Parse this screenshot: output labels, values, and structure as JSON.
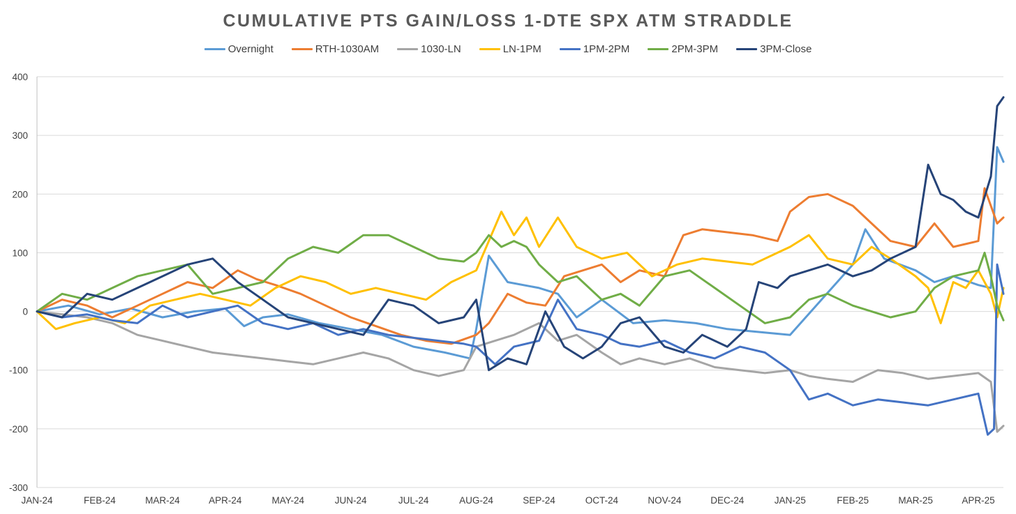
{
  "chart_data": {
    "type": "line",
    "title": "CUMULATIVE PTS GAIN/LOSS 1-DTE SPX ATM STRADDLE",
    "xlabel": "",
    "ylabel": "",
    "ylim": [
      -300,
      400
    ],
    "yticks": [
      400,
      300,
      200,
      100,
      0,
      -100,
      -200,
      -300
    ],
    "grid": true,
    "legend_position": "top",
    "categories": [
      "JAN-24",
      "FEB-24",
      "MAR-24",
      "APR-24",
      "MAY-24",
      "JUN-24",
      "JUL-24",
      "AUG-24",
      "SEP-24",
      "OCT-24",
      "NOV-24",
      "DEC-24",
      "JAN-25",
      "FEB-25",
      "MAR-25",
      "APR-25"
    ],
    "x_end": 15.4,
    "series": [
      {
        "name": "Overnight",
        "color": "#5B9BD5",
        "x": [
          0,
          0.5,
          1,
          1.5,
          2,
          2.5,
          3,
          3.3,
          3.6,
          4,
          4.5,
          5,
          5.5,
          6,
          6.5,
          6.9,
          7,
          7.2,
          7.5,
          8,
          8.3,
          8.6,
          9,
          9.5,
          10,
          10.5,
          11,
          11.5,
          12,
          12.5,
          13,
          13.2,
          13.5,
          14,
          14.3,
          14.6,
          15,
          15.2,
          15.3,
          15.4
        ],
        "values": [
          0,
          10,
          -5,
          5,
          -10,
          0,
          5,
          -25,
          -10,
          -5,
          -20,
          -30,
          -40,
          -60,
          -70,
          -80,
          -30,
          95,
          50,
          40,
          30,
          -10,
          20,
          -20,
          -15,
          -20,
          -30,
          -35,
          -40,
          20,
          80,
          140,
          90,
          70,
          50,
          60,
          45,
          40,
          280,
          255
        ]
      },
      {
        "name": "RTH-1030AM",
        "color": "#ED7D31",
        "x": [
          0,
          0.4,
          0.8,
          1.2,
          1.6,
          2,
          2.4,
          2.8,
          3.2,
          3.5,
          3.8,
          4.2,
          4.6,
          5,
          5.4,
          5.8,
          6.2,
          6.6,
          7,
          7.2,
          7.5,
          7.8,
          8.1,
          8.4,
          8.7,
          9,
          9.3,
          9.6,
          10,
          10.3,
          10.6,
          11,
          11.4,
          11.8,
          12,
          12.3,
          12.6,
          13,
          13.3,
          13.6,
          14,
          14.3,
          14.6,
          15,
          15.1,
          15.2,
          15.3,
          15.4
        ],
        "values": [
          0,
          20,
          10,
          -10,
          10,
          30,
          50,
          40,
          70,
          55,
          45,
          30,
          10,
          -10,
          -25,
          -40,
          -50,
          -55,
          -40,
          -20,
          30,
          15,
          10,
          60,
          70,
          80,
          50,
          70,
          60,
          130,
          140,
          135,
          130,
          120,
          170,
          195,
          200,
          180,
          150,
          120,
          110,
          150,
          110,
          120,
          210,
          180,
          150,
          160
        ]
      },
      {
        "name": "1030-LN",
        "color": "#A5A5A5",
        "x": [
          0,
          0.4,
          0.8,
          1.2,
          1.6,
          2,
          2.4,
          2.8,
          3.2,
          3.6,
          4,
          4.4,
          4.8,
          5.2,
          5.6,
          6,
          6.4,
          6.8,
          7,
          7.3,
          7.6,
          8,
          8.3,
          8.6,
          9,
          9.3,
          9.6,
          10,
          10.4,
          10.8,
          11.2,
          11.6,
          12,
          12.3,
          12.6,
          13,
          13.4,
          13.8,
          14.2,
          14.6,
          15,
          15.2,
          15.3,
          15.4
        ],
        "values": [
          0,
          -5,
          -10,
          -20,
          -40,
          -50,
          -60,
          -70,
          -75,
          -80,
          -85,
          -90,
          -80,
          -70,
          -80,
          -100,
          -110,
          -100,
          -60,
          -50,
          -40,
          -20,
          -50,
          -40,
          -70,
          -90,
          -80,
          -90,
          -80,
          -95,
          -100,
          -105,
          -100,
          -110,
          -115,
          -120,
          -100,
          -105,
          -115,
          -110,
          -105,
          -120,
          -205,
          -195
        ]
      },
      {
        "name": "LN-1PM",
        "color": "#FFC000",
        "x": [
          0,
          0.3,
          0.6,
          1,
          1.4,
          1.8,
          2.2,
          2.6,
          3,
          3.4,
          3.8,
          4.2,
          4.6,
          5,
          5.4,
          5.8,
          6.2,
          6.6,
          7,
          7.2,
          7.4,
          7.6,
          7.8,
          8,
          8.3,
          8.6,
          9,
          9.4,
          9.8,
          10.2,
          10.6,
          11,
          11.4,
          11.8,
          12,
          12.3,
          12.6,
          13,
          13.3,
          13.6,
          14,
          14.2,
          14.4,
          14.6,
          14.8,
          15,
          15.2,
          15.3,
          15.4
        ],
        "values": [
          0,
          -30,
          -20,
          -10,
          -20,
          10,
          20,
          30,
          20,
          10,
          40,
          60,
          50,
          30,
          40,
          30,
          20,
          50,
          70,
          120,
          170,
          130,
          160,
          110,
          160,
          110,
          90,
          100,
          60,
          80,
          90,
          85,
          80,
          100,
          110,
          130,
          90,
          80,
          110,
          90,
          60,
          40,
          -20,
          50,
          40,
          70,
          30,
          -10,
          40
        ]
      },
      {
        "name": "1PM-2PM",
        "color": "#4472C4",
        "x": [
          0,
          0.4,
          0.8,
          1.2,
          1.6,
          2,
          2.4,
          2.8,
          3.2,
          3.6,
          4,
          4.4,
          4.8,
          5.2,
          5.6,
          6,
          6.4,
          6.8,
          7,
          7.3,
          7.6,
          8,
          8.3,
          8.6,
          9,
          9.3,
          9.6,
          10,
          10.4,
          10.8,
          11.2,
          11.6,
          12,
          12.3,
          12.6,
          13,
          13.4,
          13.8,
          14.2,
          14.6,
          15,
          15.15,
          15.25,
          15.3,
          15.4
        ],
        "values": [
          0,
          -10,
          -5,
          -15,
          -20,
          10,
          -10,
          0,
          10,
          -20,
          -30,
          -20,
          -40,
          -30,
          -40,
          -45,
          -50,
          -55,
          -60,
          -90,
          -60,
          -50,
          20,
          -30,
          -40,
          -55,
          -60,
          -50,
          -70,
          -80,
          -60,
          -70,
          -100,
          -150,
          -140,
          -160,
          -150,
          -155,
          -160,
          -150,
          -140,
          -210,
          -200,
          80,
          30
        ]
      },
      {
        "name": "2PM-3PM",
        "color": "#70AD47",
        "x": [
          0,
          0.4,
          0.8,
          1.2,
          1.6,
          2,
          2.4,
          2.8,
          3.2,
          3.6,
          4,
          4.4,
          4.8,
          5.2,
          5.6,
          6,
          6.4,
          6.8,
          7,
          7.2,
          7.4,
          7.6,
          7.8,
          8,
          8.3,
          8.6,
          9,
          9.3,
          9.6,
          10,
          10.4,
          10.8,
          11.2,
          11.6,
          12,
          12.3,
          12.6,
          13,
          13.3,
          13.6,
          14,
          14.3,
          14.6,
          15,
          15.1,
          15.2,
          15.3,
          15.4
        ],
        "values": [
          0,
          30,
          20,
          40,
          60,
          70,
          80,
          30,
          40,
          50,
          90,
          110,
          100,
          130,
          130,
          110,
          90,
          85,
          100,
          130,
          110,
          120,
          110,
          80,
          50,
          60,
          20,
          30,
          10,
          60,
          70,
          40,
          10,
          -20,
          -10,
          20,
          30,
          10,
          0,
          -10,
          0,
          40,
          60,
          70,
          100,
          60,
          10,
          -15
        ]
      },
      {
        "name": "3PM-Close",
        "color": "#264478",
        "x": [
          0,
          0.4,
          0.8,
          1.2,
          1.6,
          2,
          2.4,
          2.8,
          3.2,
          3.6,
          4,
          4.4,
          4.8,
          5.2,
          5.6,
          6,
          6.4,
          6.8,
          7,
          7.2,
          7.5,
          7.8,
          8.1,
          8.4,
          8.7,
          9,
          9.3,
          9.6,
          10,
          10.3,
          10.6,
          11,
          11.3,
          11.5,
          11.8,
          12,
          12.3,
          12.6,
          13,
          13.3,
          13.6,
          14,
          14.2,
          14.4,
          14.6,
          14.8,
          15,
          15.2,
          15.3,
          15.4
        ],
        "values": [
          0,
          -10,
          30,
          20,
          40,
          60,
          80,
          90,
          50,
          20,
          -10,
          -20,
          -30,
          -40,
          20,
          10,
          -20,
          -10,
          20,
          -100,
          -80,
          -90,
          0,
          -60,
          -80,
          -60,
          -20,
          -10,
          -60,
          -70,
          -40,
          -60,
          -30,
          50,
          40,
          60,
          70,
          80,
          60,
          70,
          90,
          110,
          250,
          200,
          190,
          170,
          160,
          230,
          350,
          365
        ]
      }
    ]
  }
}
